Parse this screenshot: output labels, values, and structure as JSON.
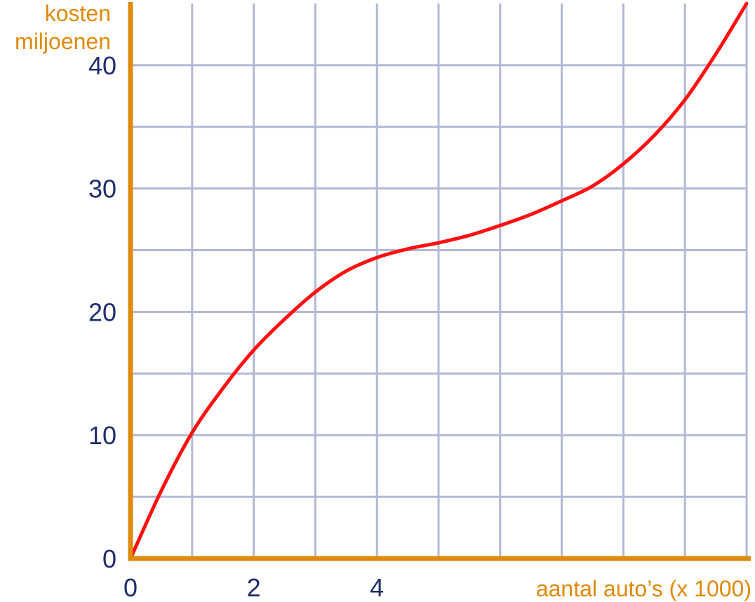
{
  "chart_data": {
    "type": "line",
    "title": "",
    "ylabel_line1": "kosten",
    "ylabel_line2": "miljoenen",
    "xlabel": "aantal auto’s (x 1000)",
    "xlim": [
      0,
      10
    ],
    "ylim": [
      0,
      45
    ],
    "x_gridlines": [
      1,
      2,
      3,
      4,
      5,
      6,
      7,
      8,
      9,
      10
    ],
    "y_gridlines": [
      5,
      10,
      15,
      20,
      25,
      30,
      35,
      40
    ],
    "x_tick_labels": [
      {
        "value": 0,
        "label": "0"
      },
      {
        "value": 2,
        "label": "2"
      },
      {
        "value": 4,
        "label": "4"
      }
    ],
    "y_tick_labels": [
      {
        "value": 0,
        "label": "0"
      },
      {
        "value": 10,
        "label": "10"
      },
      {
        "value": 20,
        "label": "20"
      },
      {
        "value": 30,
        "label": "30"
      },
      {
        "value": 40,
        "label": "40"
      }
    ],
    "grid": true,
    "series": [
      {
        "x": [
          0,
          0.5,
          1,
          1.5,
          2,
          2.5,
          3,
          3.5,
          4,
          4.5,
          5,
          5.5,
          6,
          6.5,
          7,
          7.5,
          8,
          8.5,
          9,
          9.5,
          10
        ],
        "y": [
          0,
          5.5,
          10.2,
          13.8,
          16.9,
          19.4,
          21.6,
          23.3,
          24.4,
          25.1,
          25.6,
          26.2,
          27,
          27.9,
          29,
          30.2,
          32,
          34.3,
          37.2,
          40.9,
          45
        ],
        "color": "#ff1010"
      }
    ],
    "colors": {
      "axis": "#e08a0c",
      "grid": "#b3b8d6",
      "tick_text": "#1f2d6e",
      "axis_title": "#e08a0c"
    }
  }
}
